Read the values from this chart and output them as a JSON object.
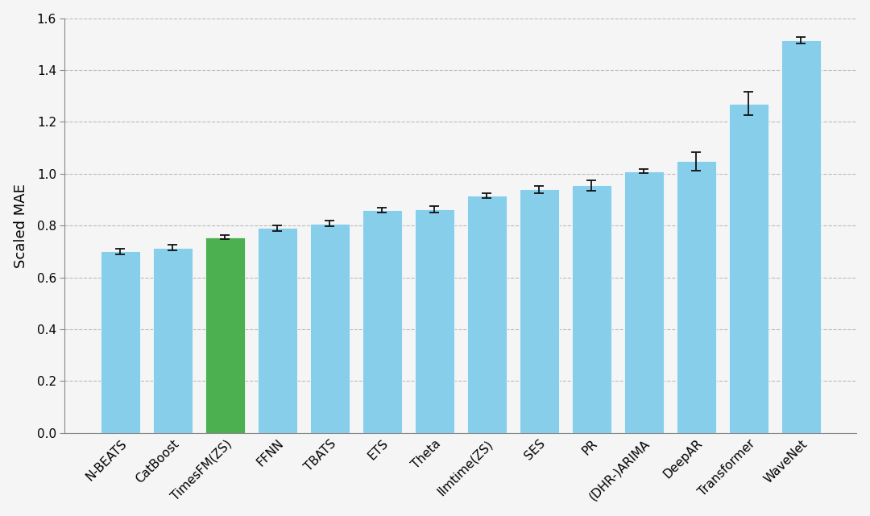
{
  "categories": [
    "N-BEATS",
    "CatBoost",
    "TimesFM(ZS)",
    "FFNN",
    "TBATS",
    "ETS",
    "Theta",
    "IImtime(ZS)",
    "SES",
    "PR",
    "(DHR-)ARIMA",
    "DeepAR",
    "Transformer",
    "WaveNet"
  ],
  "values": [
    0.7,
    0.715,
    0.755,
    0.79,
    0.808,
    0.86,
    0.862,
    0.915,
    0.94,
    0.955,
    1.01,
    1.048,
    1.27,
    1.515
  ],
  "errors": [
    0.012,
    0.012,
    0.008,
    0.01,
    0.01,
    0.01,
    0.012,
    0.01,
    0.014,
    0.02,
    0.008,
    0.035,
    0.045,
    0.012
  ],
  "bar_colors": [
    "#87CEEB",
    "#87CEEB",
    "#4CAF50",
    "#87CEEB",
    "#87CEEB",
    "#87CEEB",
    "#87CEEB",
    "#87CEEB",
    "#87CEEB",
    "#87CEEB",
    "#87CEEB",
    "#87CEEB",
    "#87CEEB",
    "#87CEEB"
  ],
  "ylabel": "Scaled MAE",
  "ylim": [
    0.0,
    1.6
  ],
  "yticks": [
    0.0,
    0.2,
    0.4,
    0.6,
    0.8,
    1.0,
    1.2,
    1.4,
    1.6
  ],
  "figure_bg": "#f5f5f5",
  "axes_bg": "#f5f5f5",
  "grid_color": "#bbbbbb",
  "bar_edge_color": "white",
  "bar_edge_width": 0.5,
  "error_color": "#111111",
  "label_fontsize": 12,
  "tick_fontsize": 11,
  "ylabel_fontsize": 13,
  "bar_width": 0.75,
  "figsize": [
    10.8,
    6.41
  ],
  "dpi": 100
}
